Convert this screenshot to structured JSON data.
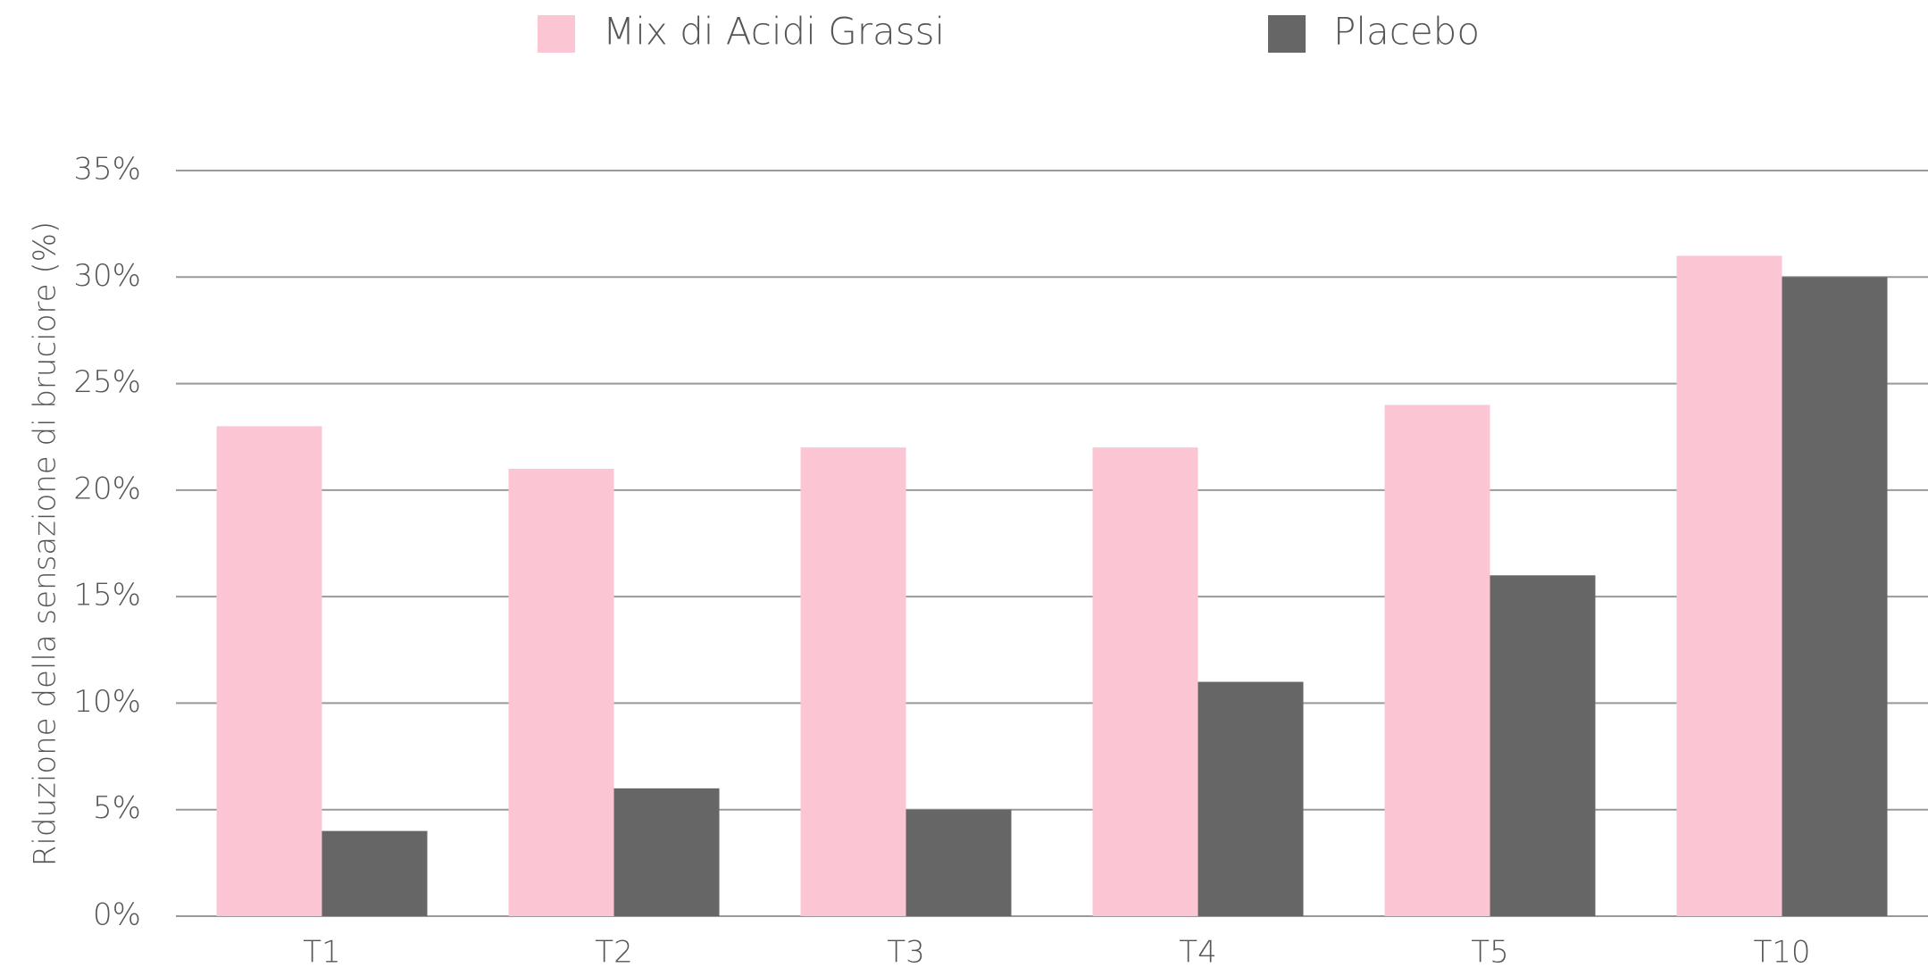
{
  "chart_data": {
    "type": "bar",
    "y_label": "Riduzione della sensazione di bruciore (%)",
    "categories": [
      "T1",
      "T2",
      "T3",
      "T4",
      "T5",
      "T10"
    ],
    "series": [
      {
        "name": "Mix di Acidi Grassi",
        "color": "#fcc5d3",
        "values": [
          23,
          21,
          22,
          22,
          24,
          31
        ]
      },
      {
        "name": "Placebo",
        "color": "#666666",
        "values": [
          4,
          6,
          5,
          11,
          16,
          30
        ]
      }
    ],
    "ylim": [
      0,
      35
    ],
    "yticks": [
      {
        "value": 0,
        "label": "0%"
      },
      {
        "value": 5,
        "label": "5%"
      },
      {
        "value": 10,
        "label": "10%"
      },
      {
        "value": 15,
        "label": "15%"
      },
      {
        "value": 20,
        "label": "20%"
      },
      {
        "value": 25,
        "label": "25%"
      },
      {
        "value": 30,
        "label": "30%"
      },
      {
        "value": 35,
        "label": "35%"
      }
    ],
    "grid": true,
    "legend": "top"
  }
}
